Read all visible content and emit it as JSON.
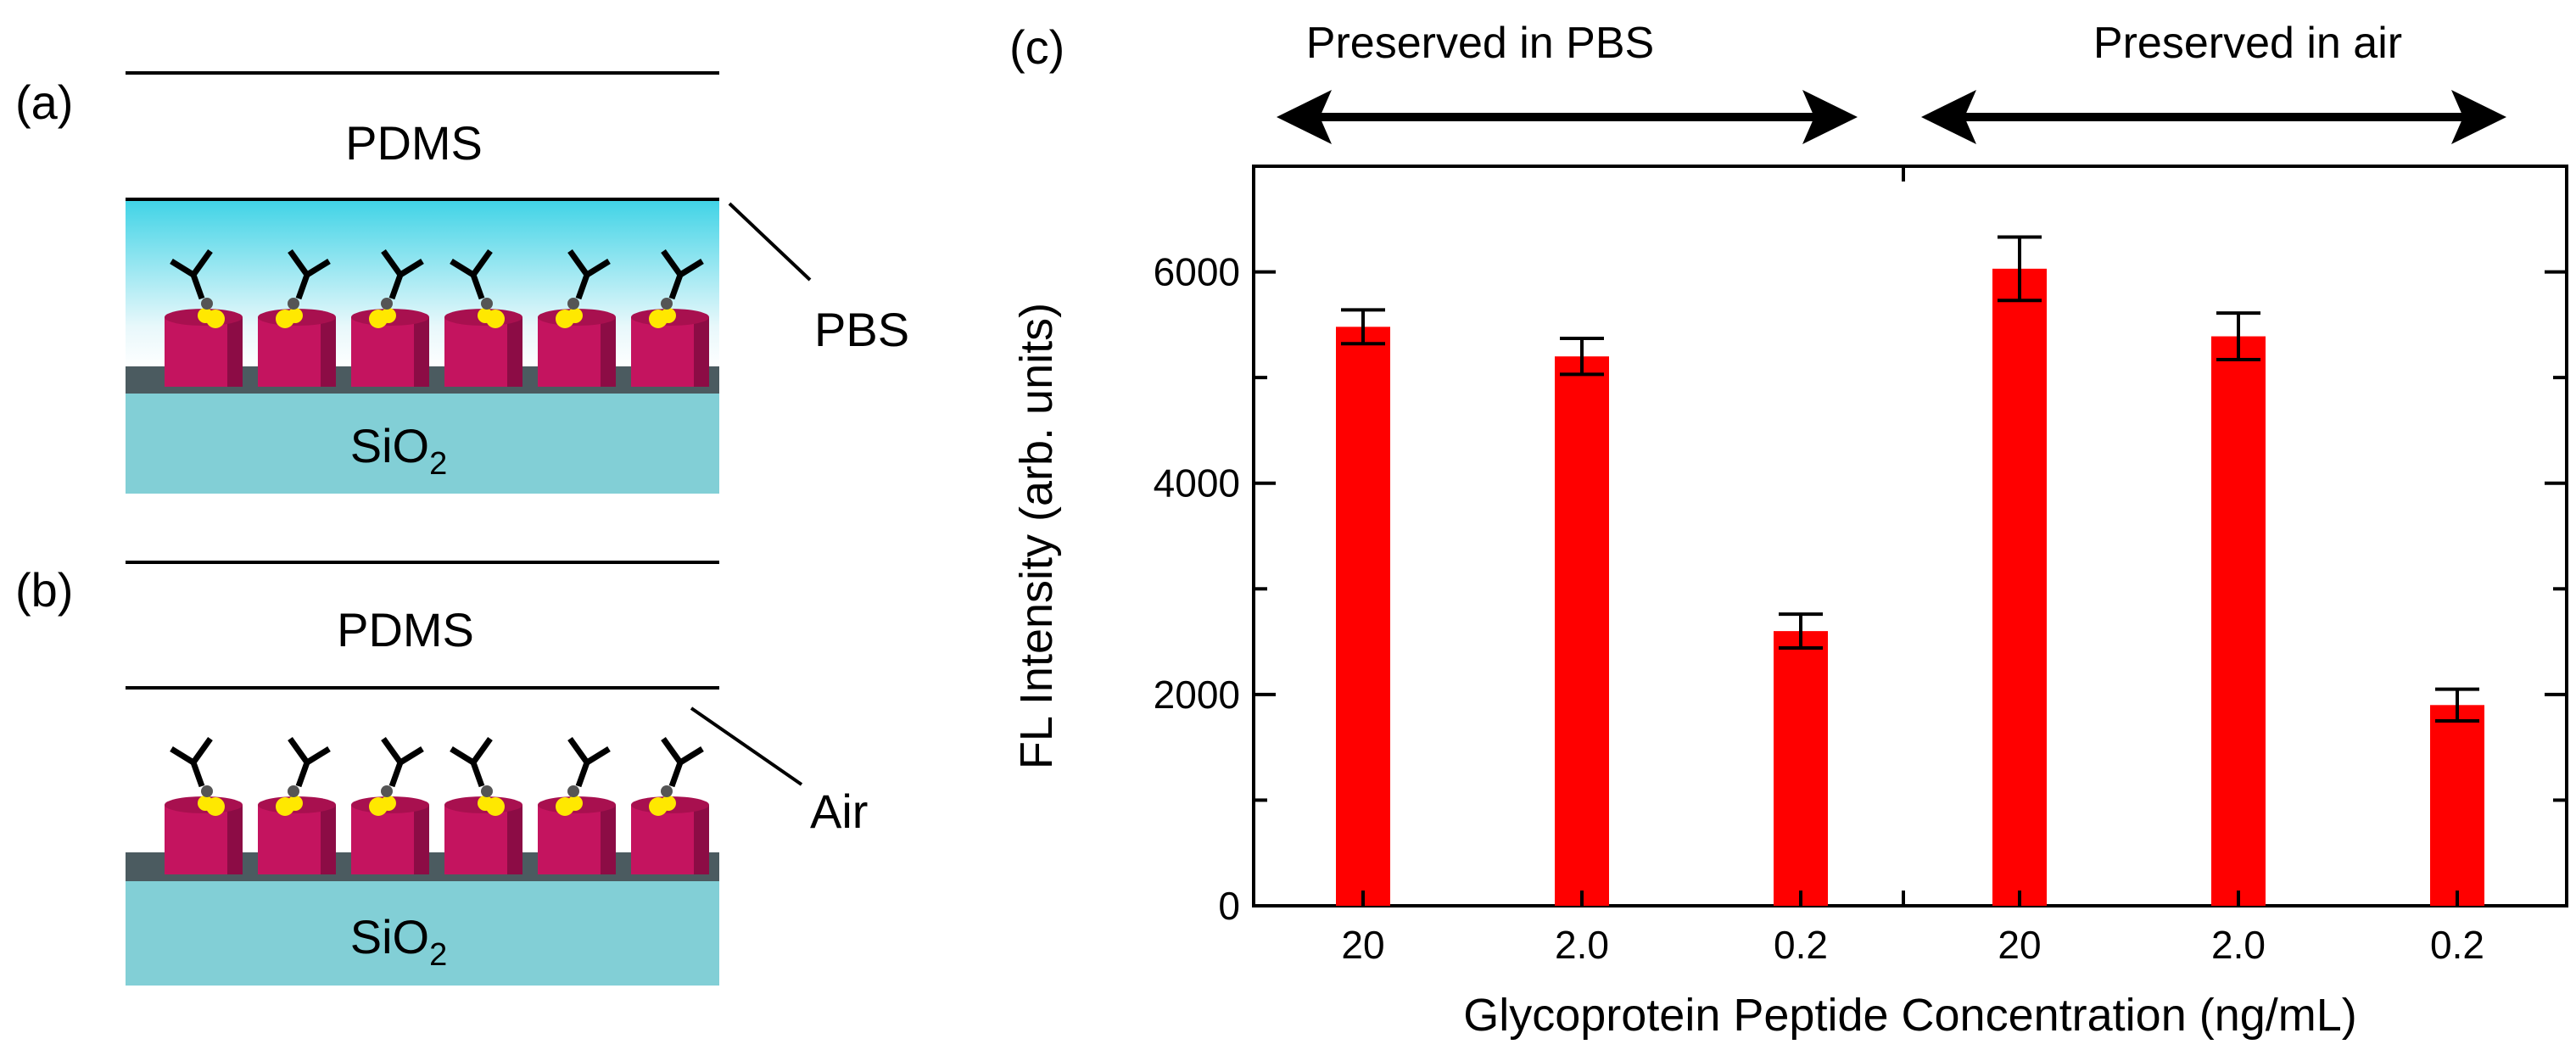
{
  "panels": {
    "a": {
      "label": "(a)",
      "top_layer": "PDMS",
      "medium": "PBS",
      "substrate": "SiO",
      "substrate_sub": "2"
    },
    "b": {
      "label": "(b)",
      "top_layer": "PDMS",
      "medium": "Air",
      "substrate": "SiO",
      "substrate_sub": "2"
    },
    "c": {
      "label": "(c)",
      "groups": [
        {
          "label": "Preserved in PBS"
        },
        {
          "label": "Preserved in air"
        }
      ]
    }
  },
  "chart_data": {
    "type": "bar",
    "title": "",
    "xlabel": "Glycoprotein Peptide Concentration (ng/mL)",
    "ylabel": "FL Intensity (arb. units)",
    "categories": [
      "20",
      "2.0",
      "0.2",
      "20",
      "2.0",
      "0.2"
    ],
    "groups": [
      "Preserved in PBS",
      "Preserved in PBS",
      "Preserved in PBS",
      "Preserved in air",
      "Preserved in air",
      "Preserved in air"
    ],
    "values": [
      5480,
      5200,
      2600,
      6030,
      5390,
      1900
    ],
    "errors": [
      160,
      170,
      160,
      300,
      220,
      150
    ],
    "ylim": [
      0,
      7000
    ],
    "yticks": [
      0,
      2000,
      4000,
      6000
    ],
    "bar_color": "#ff0000",
    "grid": false
  }
}
